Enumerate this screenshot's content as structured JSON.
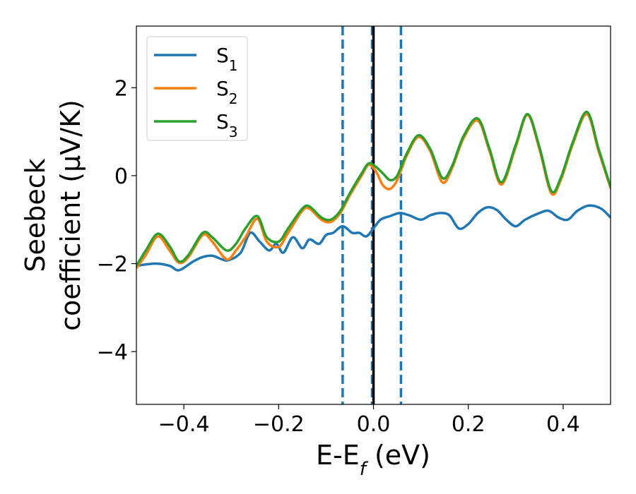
{
  "chart_data": {
    "type": "line",
    "xlabel": "E-E",
    "xlabel_sub": "f",
    "xlabel_unit": " (eV)",
    "ylabel_line1": "Seebeck",
    "ylabel_line2": "coefficient  (μV/K)",
    "xlim": [
      -0.5,
      0.5
    ],
    "ylim": [
      -5.2,
      3.4
    ],
    "xticks": [
      -0.4,
      -0.2,
      0.0,
      0.2,
      0.4
    ],
    "xtick_labels": [
      "−0.4",
      "−0.2",
      "0.0",
      "0.2",
      "0.4"
    ],
    "yticks": [
      -4,
      -2,
      0,
      2
    ],
    "ytick_labels": [
      "−4",
      "−2",
      "0",
      "2"
    ],
    "grid": false,
    "legend_position": "top-left",
    "vlines": [
      {
        "x": -0.065,
        "style": "dashed",
        "color": "#1f77b4"
      },
      {
        "x": -0.003,
        "style": "dashed",
        "color": "#1f77b4"
      },
      {
        "x": 0.0,
        "style": "solid",
        "color": "#000000"
      },
      {
        "x": 0.058,
        "style": "dashed",
        "color": "#1f77b4"
      }
    ],
    "series": [
      {
        "name": "S",
        "sub": "1",
        "color": "#1f77b4",
        "x": [
          -0.5,
          -0.46,
          -0.43,
          -0.41,
          -0.38,
          -0.36,
          -0.34,
          -0.32,
          -0.305,
          -0.28,
          -0.26,
          -0.24,
          -0.22,
          -0.205,
          -0.19,
          -0.17,
          -0.15,
          -0.135,
          -0.115,
          -0.1,
          -0.085,
          -0.065,
          -0.045,
          -0.03,
          -0.015,
          0.0,
          0.015,
          0.035,
          0.055,
          0.075,
          0.1,
          0.12,
          0.14,
          0.16,
          0.18,
          0.2,
          0.22,
          0.24,
          0.26,
          0.28,
          0.3,
          0.32,
          0.35,
          0.37,
          0.39,
          0.41,
          0.43,
          0.455,
          0.48,
          0.5
        ],
        "y": [
          -2.05,
          -2.0,
          -2.05,
          -2.15,
          -1.95,
          -1.85,
          -1.82,
          -1.9,
          -1.92,
          -1.75,
          -1.3,
          -1.5,
          -1.7,
          -1.55,
          -1.75,
          -1.4,
          -1.65,
          -1.45,
          -1.55,
          -1.35,
          -1.3,
          -1.15,
          -1.3,
          -1.3,
          -1.38,
          -1.2,
          -1.0,
          -0.92,
          -0.85,
          -0.9,
          -1.0,
          -0.9,
          -0.85,
          -0.9,
          -1.2,
          -1.1,
          -0.85,
          -0.72,
          -0.78,
          -1.0,
          -1.15,
          -1.0,
          -0.85,
          -0.8,
          -0.95,
          -1.0,
          -0.8,
          -0.68,
          -0.75,
          -0.95
        ]
      },
      {
        "name": "S",
        "sub": "2",
        "color": "#ff7f0e",
        "x": [
          -0.5,
          -0.48,
          -0.455,
          -0.43,
          -0.41,
          -0.39,
          -0.36,
          -0.34,
          -0.31,
          -0.29,
          -0.27,
          -0.245,
          -0.225,
          -0.2,
          -0.18,
          -0.15,
          -0.135,
          -0.11,
          -0.09,
          -0.07,
          -0.05,
          -0.025,
          -0.01,
          0.005,
          0.02,
          0.035,
          0.05,
          0.07,
          0.095,
          0.12,
          0.145,
          0.165,
          0.19,
          0.22,
          0.245,
          0.27,
          0.3,
          0.325,
          0.35,
          0.375,
          0.395,
          0.42,
          0.45,
          0.475,
          0.5
        ],
        "y": [
          -2.1,
          -1.8,
          -1.38,
          -1.7,
          -1.98,
          -1.85,
          -1.35,
          -1.5,
          -1.9,
          -1.7,
          -1.4,
          -0.98,
          -1.5,
          -1.62,
          -1.3,
          -0.8,
          -0.75,
          -1.0,
          -1.05,
          -0.85,
          -0.45,
          0.0,
          0.25,
          0.1,
          -0.22,
          -0.3,
          -0.1,
          0.45,
          0.88,
          0.55,
          -0.15,
          0.15,
          0.85,
          1.25,
          0.55,
          -0.2,
          0.65,
          1.38,
          0.6,
          -0.4,
          -0.1,
          0.7,
          1.4,
          0.55,
          -0.28
        ]
      },
      {
        "name": "S",
        "sub": "3",
        "color": "#2ca02c",
        "x": [
          -0.5,
          -0.48,
          -0.455,
          -0.43,
          -0.41,
          -0.39,
          -0.36,
          -0.34,
          -0.31,
          -0.29,
          -0.27,
          -0.245,
          -0.225,
          -0.2,
          -0.18,
          -0.15,
          -0.135,
          -0.11,
          -0.09,
          -0.07,
          -0.05,
          -0.025,
          -0.01,
          0.005,
          0.02,
          0.035,
          0.05,
          0.07,
          0.095,
          0.12,
          0.145,
          0.165,
          0.19,
          0.22,
          0.245,
          0.27,
          0.3,
          0.325,
          0.35,
          0.375,
          0.395,
          0.42,
          0.45,
          0.475,
          0.5
        ],
        "y": [
          -2.05,
          -1.7,
          -1.32,
          -1.6,
          -1.95,
          -1.8,
          -1.3,
          -1.4,
          -1.7,
          -1.55,
          -1.2,
          -0.92,
          -1.4,
          -1.5,
          -1.2,
          -0.75,
          -0.7,
          -0.95,
          -1.0,
          -0.8,
          -0.4,
          0.05,
          0.28,
          0.2,
          0.05,
          -0.1,
          0.0,
          0.5,
          0.92,
          0.6,
          -0.05,
          0.2,
          0.9,
          1.3,
          0.6,
          -0.15,
          0.7,
          1.4,
          0.65,
          -0.35,
          -0.05,
          0.75,
          1.45,
          0.6,
          -0.25
        ]
      }
    ]
  }
}
